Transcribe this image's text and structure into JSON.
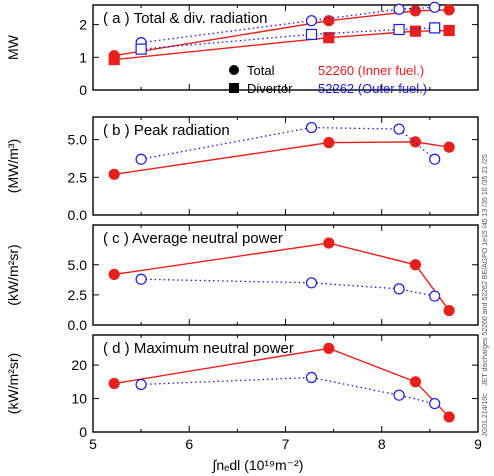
{
  "chart_data": [
    {
      "type": "scatter",
      "title": "( a ) Total & div. radiation",
      "ylabel": "MW",
      "ylim": [
        0,
        2.6
      ],
      "yticks": [
        "0",
        "1",
        "2"
      ],
      "legend": {
        "markers": [
          {
            "shape": "circle",
            "label": "Total"
          },
          {
            "shape": "square",
            "label": "Divertor"
          }
        ],
        "shots": [
          {
            "label": "52260 (Inner fuel.)",
            "color": "#e8201c"
          },
          {
            "label": "52262 (Outer fuel.)",
            "color": "#1a1ae0"
          }
        ]
      },
      "series": [
        {
          "shot": "52260",
          "quantity": "Total",
          "color": "#e8201c",
          "marker": "circle",
          "filled": true,
          "line": "solid",
          "x": [
            5.22,
            7.45,
            8.35,
            8.7
          ],
          "y": [
            1.05,
            2.12,
            2.42,
            2.45
          ]
        },
        {
          "shot": "52260",
          "quantity": "Divertor",
          "color": "#e8201c",
          "marker": "square",
          "filled": true,
          "line": "solid",
          "x": [
            5.22,
            7.45,
            8.35,
            8.7
          ],
          "y": [
            0.93,
            1.6,
            1.8,
            1.82
          ]
        },
        {
          "shot": "52262",
          "quantity": "Total",
          "color": "#1a1ae0",
          "marker": "circle",
          "filled": false,
          "line": "dotted",
          "x": [
            5.5,
            7.27,
            8.18,
            8.55
          ],
          "y": [
            1.45,
            2.12,
            2.47,
            2.53
          ]
        },
        {
          "shot": "52262",
          "quantity": "Divertor",
          "color": "#1a1ae0",
          "marker": "square",
          "filled": false,
          "line": "dotted",
          "x": [
            5.5,
            7.27,
            8.18,
            8.55
          ],
          "y": [
            1.25,
            1.7,
            1.85,
            1.9
          ]
        }
      ]
    },
    {
      "type": "scatter",
      "title": "( b ) Peak radiation",
      "ylabel": "(MW/m³)",
      "ylim": [
        0,
        6.5
      ],
      "yticks": [
        "0.0",
        "2.5",
        "5.0"
      ],
      "series": [
        {
          "shot": "52260",
          "color": "#e8201c",
          "marker": "circle",
          "filled": true,
          "line": "solid",
          "x": [
            5.22,
            7.45,
            8.35,
            8.7
          ],
          "y": [
            2.7,
            4.8,
            4.85,
            4.5
          ]
        },
        {
          "shot": "52262",
          "color": "#1a1ae0",
          "marker": "circle",
          "filled": false,
          "line": "dotted",
          "x": [
            5.5,
            7.27,
            8.18,
            8.55
          ],
          "y": [
            3.7,
            5.8,
            5.7,
            3.7
          ]
        }
      ]
    },
    {
      "type": "scatter",
      "title": "( c ) Average neutral power",
      "ylabel": "(kW/m²sr)",
      "ylim": [
        0,
        8.3
      ],
      "yticks": [
        "0.0",
        "2.5",
        "5.0"
      ],
      "series": [
        {
          "shot": "52260",
          "color": "#e8201c",
          "marker": "circle",
          "filled": true,
          "line": "solid",
          "x": [
            5.22,
            7.45,
            8.35,
            8.7
          ],
          "y": [
            4.2,
            6.8,
            5.0,
            1.2
          ]
        },
        {
          "shot": "52262",
          "color": "#1a1ae0",
          "marker": "circle",
          "filled": false,
          "line": "dotted",
          "x": [
            5.5,
            7.27,
            8.18,
            8.55
          ],
          "y": [
            3.8,
            3.5,
            3.0,
            2.4
          ]
        }
      ]
    },
    {
      "type": "scatter",
      "title": "( d ) Maximum neutral power",
      "ylabel": "(kW/m²sr)",
      "xlabel": "∫nₑdl (10¹⁹m⁻²)",
      "xlim": [
        5,
        9
      ],
      "xticks": [
        "5",
        "6",
        "7",
        "8",
        "9"
      ],
      "ylim": [
        0,
        29
      ],
      "yticks": [
        "0",
        "10",
        "20"
      ],
      "series": [
        {
          "shot": "52260",
          "color": "#e8201c",
          "marker": "circle",
          "filled": true,
          "line": "solid",
          "x": [
            5.22,
            7.45,
            8.35,
            8.7
          ],
          "y": [
            14.5,
            25.0,
            15.0,
            4.5
          ]
        },
        {
          "shot": "52262",
          "color": "#1a1ae0",
          "marker": "circle",
          "filled": false,
          "line": "dotted",
          "x": [
            5.5,
            7.27,
            8.18,
            8.55
          ],
          "y": [
            14.2,
            16.3,
            11.0,
            8.5
          ]
        }
      ]
    }
  ],
  "side_texts": [
    "JET discharges 52260 and 52262  BE/AGPO   1e15 /45  13 /35  10 /35  21 /25",
    "JG01.214/10c"
  ]
}
